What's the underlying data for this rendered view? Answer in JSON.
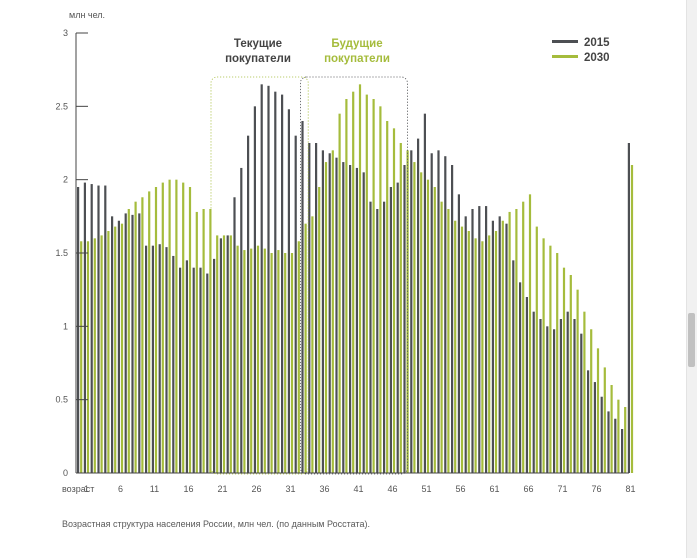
{
  "chart_data": {
    "type": "bar",
    "title": "",
    "ylabel": "млн чел.",
    "xlabel": "возраст",
    "ylim": [
      0,
      3
    ],
    "yticks": [
      "0",
      "0.5",
      "1",
      "1.5",
      "2",
      "2.5",
      "3"
    ],
    "ytick_values": [
      0,
      0.5,
      1,
      1.5,
      2,
      2.5,
      3
    ],
    "x_tick_labels": [
      "1",
      "6",
      "11",
      "16",
      "21",
      "26",
      "31",
      "36",
      "41",
      "46",
      "51",
      "56",
      "61",
      "66",
      "71",
      "76",
      "81"
    ],
    "ages": [
      0,
      1,
      2,
      3,
      4,
      5,
      6,
      7,
      8,
      9,
      10,
      11,
      12,
      13,
      14,
      15,
      16,
      17,
      18,
      19,
      20,
      21,
      22,
      23,
      24,
      25,
      26,
      27,
      28,
      29,
      30,
      31,
      32,
      33,
      34,
      35,
      36,
      37,
      38,
      39,
      40,
      41,
      42,
      43,
      44,
      45,
      46,
      47,
      48,
      49,
      50,
      51,
      52,
      53,
      54,
      55,
      56,
      57,
      58,
      59,
      60,
      61,
      62,
      63,
      64,
      65,
      66,
      67,
      68,
      69,
      70,
      71,
      72,
      73,
      74,
      75,
      76,
      77,
      78,
      79,
      80,
      81
    ],
    "series": [
      {
        "name": "2015",
        "color": "#4d4f53",
        "values": [
          1.95,
          1.98,
          1.97,
          1.96,
          1.96,
          1.75,
          1.72,
          1.77,
          1.76,
          1.77,
          1.55,
          1.55,
          1.56,
          1.54,
          1.48,
          1.4,
          1.45,
          1.4,
          1.4,
          1.36,
          1.46,
          1.6,
          1.62,
          1.88,
          2.08,
          2.3,
          2.5,
          2.65,
          2.64,
          2.6,
          2.58,
          2.48,
          2.3,
          2.4,
          2.25,
          2.25,
          2.2,
          2.18,
          2.15,
          2.12,
          2.1,
          2.08,
          2.05,
          1.85,
          1.8,
          1.85,
          1.95,
          1.98,
          2.1,
          2.2,
          2.28,
          2.45,
          2.18,
          2.2,
          2.16,
          2.1,
          1.9,
          1.75,
          1.8,
          1.82,
          1.82,
          1.72,
          1.75,
          1.7,
          1.45,
          1.3,
          1.2,
          1.1,
          1.05,
          1.0,
          0.98,
          1.05,
          1.1,
          1.05,
          0.95,
          0.7,
          0.62,
          0.52,
          0.42,
          0.37,
          0.3,
          2.25
        ]
      },
      {
        "name": "2030",
        "color": "#a5bc3c",
        "values": [
          1.58,
          1.58,
          1.6,
          1.62,
          1.65,
          1.68,
          1.7,
          1.8,
          1.85,
          1.88,
          1.92,
          1.95,
          1.98,
          2.0,
          2.0,
          1.98,
          1.95,
          1.78,
          1.8,
          1.8,
          1.62,
          1.62,
          1.62,
          1.55,
          1.52,
          1.53,
          1.55,
          1.53,
          1.5,
          1.52,
          1.5,
          1.5,
          1.58,
          1.7,
          1.75,
          1.95,
          2.12,
          2.2,
          2.45,
          2.55,
          2.6,
          2.65,
          2.58,
          2.55,
          2.5,
          2.4,
          2.35,
          2.25,
          2.2,
          2.12,
          2.05,
          2.0,
          1.95,
          1.85,
          1.8,
          1.72,
          1.68,
          1.65,
          1.6,
          1.58,
          1.62,
          1.65,
          1.72,
          1.78,
          1.8,
          1.85,
          1.9,
          1.68,
          1.6,
          1.55,
          1.5,
          1.4,
          1.35,
          1.25,
          1.1,
          0.98,
          0.85,
          0.72,
          0.6,
          0.5,
          0.45,
          2.1
        ]
      }
    ],
    "legend": {
      "position": "top-right",
      "items": [
        "2015",
        "2030"
      ]
    },
    "annotations": {
      "current_buyers": "Текущие покупатели",
      "future_buyers": "Будущие покупатели",
      "current_buyers_lines": [
        "Текущие",
        "покупатели"
      ],
      "future_buyers_lines": [
        "Будущие",
        "покупатели"
      ],
      "current_buyers_age_range": [
        20,
        34
      ],
      "future_buyers_age_range": [
        33,
        48
      ]
    }
  },
  "caption": "Возрастная структура населения России, млн чел. (по данным Росстата).",
  "colors": {
    "series_2015": "#4d4f53",
    "series_2030": "#a5bc3c",
    "axis": "#444444"
  }
}
